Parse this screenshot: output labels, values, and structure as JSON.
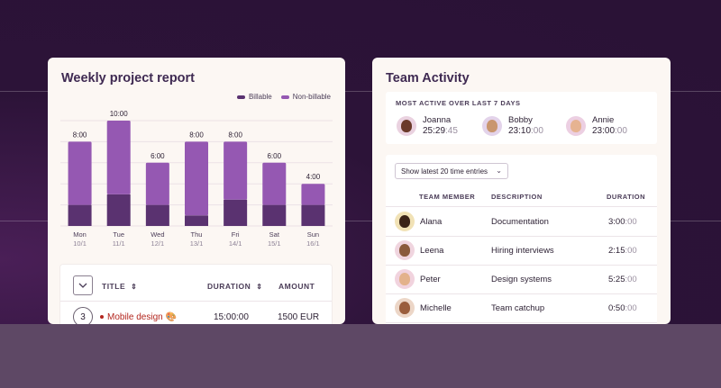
{
  "report": {
    "title": "Weekly project report",
    "legend": [
      {
        "label": "Billable",
        "color": "#5a3270"
      },
      {
        "label": "Non-billable",
        "color": "#9558b2"
      }
    ],
    "table": {
      "collapse_icon": "chevron-down-icon",
      "headers": {
        "title": "TITLE",
        "duration": "DURATION",
        "amount": "AMOUNT"
      },
      "sort_icon": "⇕",
      "row": {
        "number": "3",
        "project": "Mobile design",
        "emoji": "🎨",
        "duration": "15:00:00",
        "amount": "1500 EUR"
      }
    }
  },
  "chart_data": {
    "type": "bar",
    "stacked": true,
    "categories": [
      "Mon",
      "Tue",
      "Wed",
      "Thu",
      "Fri",
      "Sat",
      "Sun"
    ],
    "dates": [
      "10/1",
      "11/1",
      "12/1",
      "13/1",
      "14/1",
      "15/1",
      "16/1"
    ],
    "total_labels": [
      "8:00",
      "10:00",
      "6:00",
      "8:00",
      "8:00",
      "6:00",
      "4:00"
    ],
    "series": [
      {
        "name": "Billable",
        "color": "#5a3270",
        "values": [
          2,
          3,
          2,
          1,
          2.5,
          2,
          2
        ]
      },
      {
        "name": "Non-billable",
        "color": "#9558b2",
        "values": [
          6,
          7,
          4,
          7,
          5.5,
          4,
          2
        ]
      }
    ],
    "ylim": [
      0,
      10
    ],
    "grid": true,
    "legend": "top-right"
  },
  "activity": {
    "title": "Team Activity",
    "most_active": {
      "title": "MOST ACTIVE OVER LAST 7 DAYS",
      "users": [
        {
          "name": "Joanna",
          "time_main": "25:29",
          "time_light": ":45",
          "avatar_bg": "#ead2e0",
          "face": "#6b3a2a"
        },
        {
          "name": "Bobby",
          "time_main": "23:10",
          "time_light": ":00",
          "avatar_bg": "#e3d3ea",
          "face": "#c9966f"
        },
        {
          "name": "Annie",
          "time_main": "23:00",
          "time_light": ":00",
          "avatar_bg": "#eccfe2",
          "face": "#e6b391"
        }
      ]
    },
    "entries": {
      "select_label": "Show latest 20 time entries",
      "headers": {
        "member": "TEAM MEMBER",
        "description": "DESCRIPTION",
        "duration": "DURATION"
      },
      "rows": [
        {
          "name": "Alana",
          "description": "Documentation",
          "dur_main": "3:00",
          "dur_light": ":00",
          "avatar_bg": "#f1e2b6",
          "face": "#3b2418"
        },
        {
          "name": "Leena",
          "description": "Hiring interviews",
          "dur_main": "2:15",
          "dur_light": ":00",
          "avatar_bg": "#f0d5df",
          "face": "#8a5a3c"
        },
        {
          "name": "Peter",
          "description": "Design systems",
          "dur_main": "5:25",
          "dur_light": ":00",
          "avatar_bg": "#f1d3de",
          "face": "#e3b28b"
        },
        {
          "name": "Michelle",
          "description": "Team catchup",
          "dur_main": "0:50",
          "dur_light": ":00",
          "avatar_bg": "#ecd6c7",
          "face": "#9a5d3c"
        }
      ]
    }
  }
}
